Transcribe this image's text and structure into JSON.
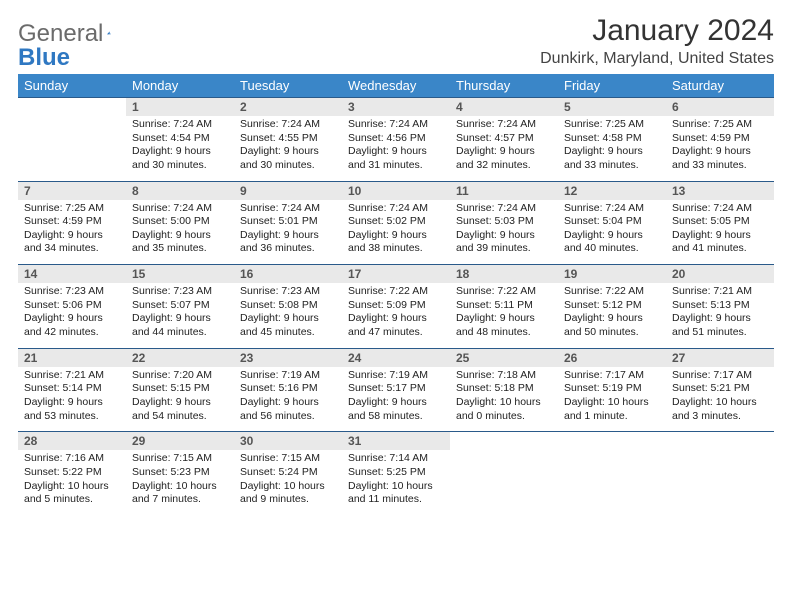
{
  "brand": {
    "word1": "General",
    "word2": "Blue"
  },
  "title": "January 2024",
  "location": "Dunkirk, Maryland, United States",
  "colors": {
    "header_bg": "#3a86c8",
    "header_text": "#ffffff",
    "daynum_bg": "#e9e9e9",
    "row_border": "#2a5a8a",
    "logo_gray": "#6b6b6b",
    "logo_blue": "#2f78c2",
    "page_bg": "#ffffff"
  },
  "typography": {
    "title_fontsize": 30,
    "location_fontsize": 16,
    "weekday_fontsize": 13,
    "daynum_fontsize": 12,
    "body_fontsize": 10.5
  },
  "weekdays": [
    "Sunday",
    "Monday",
    "Tuesday",
    "Wednesday",
    "Thursday",
    "Friday",
    "Saturday"
  ],
  "grid": [
    [
      {
        "num": "",
        "lines": []
      },
      {
        "num": "1",
        "lines": [
          "Sunrise: 7:24 AM",
          "Sunset: 4:54 PM",
          "Daylight: 9 hours and 30 minutes."
        ]
      },
      {
        "num": "2",
        "lines": [
          "Sunrise: 7:24 AM",
          "Sunset: 4:55 PM",
          "Daylight: 9 hours and 30 minutes."
        ]
      },
      {
        "num": "3",
        "lines": [
          "Sunrise: 7:24 AM",
          "Sunset: 4:56 PM",
          "Daylight: 9 hours and 31 minutes."
        ]
      },
      {
        "num": "4",
        "lines": [
          "Sunrise: 7:24 AM",
          "Sunset: 4:57 PM",
          "Daylight: 9 hours and 32 minutes."
        ]
      },
      {
        "num": "5",
        "lines": [
          "Sunrise: 7:25 AM",
          "Sunset: 4:58 PM",
          "Daylight: 9 hours and 33 minutes."
        ]
      },
      {
        "num": "6",
        "lines": [
          "Sunrise: 7:25 AM",
          "Sunset: 4:59 PM",
          "Daylight: 9 hours and 33 minutes."
        ]
      }
    ],
    [
      {
        "num": "7",
        "lines": [
          "Sunrise: 7:25 AM",
          "Sunset: 4:59 PM",
          "Daylight: 9 hours and 34 minutes."
        ]
      },
      {
        "num": "8",
        "lines": [
          "Sunrise: 7:24 AM",
          "Sunset: 5:00 PM",
          "Daylight: 9 hours and 35 minutes."
        ]
      },
      {
        "num": "9",
        "lines": [
          "Sunrise: 7:24 AM",
          "Sunset: 5:01 PM",
          "Daylight: 9 hours and 36 minutes."
        ]
      },
      {
        "num": "10",
        "lines": [
          "Sunrise: 7:24 AM",
          "Sunset: 5:02 PM",
          "Daylight: 9 hours and 38 minutes."
        ]
      },
      {
        "num": "11",
        "lines": [
          "Sunrise: 7:24 AM",
          "Sunset: 5:03 PM",
          "Daylight: 9 hours and 39 minutes."
        ]
      },
      {
        "num": "12",
        "lines": [
          "Sunrise: 7:24 AM",
          "Sunset: 5:04 PM",
          "Daylight: 9 hours and 40 minutes."
        ]
      },
      {
        "num": "13",
        "lines": [
          "Sunrise: 7:24 AM",
          "Sunset: 5:05 PM",
          "Daylight: 9 hours and 41 minutes."
        ]
      }
    ],
    [
      {
        "num": "14",
        "lines": [
          "Sunrise: 7:23 AM",
          "Sunset: 5:06 PM",
          "Daylight: 9 hours and 42 minutes."
        ]
      },
      {
        "num": "15",
        "lines": [
          "Sunrise: 7:23 AM",
          "Sunset: 5:07 PM",
          "Daylight: 9 hours and 44 minutes."
        ]
      },
      {
        "num": "16",
        "lines": [
          "Sunrise: 7:23 AM",
          "Sunset: 5:08 PM",
          "Daylight: 9 hours and 45 minutes."
        ]
      },
      {
        "num": "17",
        "lines": [
          "Sunrise: 7:22 AM",
          "Sunset: 5:09 PM",
          "Daylight: 9 hours and 47 minutes."
        ]
      },
      {
        "num": "18",
        "lines": [
          "Sunrise: 7:22 AM",
          "Sunset: 5:11 PM",
          "Daylight: 9 hours and 48 minutes."
        ]
      },
      {
        "num": "19",
        "lines": [
          "Sunrise: 7:22 AM",
          "Sunset: 5:12 PM",
          "Daylight: 9 hours and 50 minutes."
        ]
      },
      {
        "num": "20",
        "lines": [
          "Sunrise: 7:21 AM",
          "Sunset: 5:13 PM",
          "Daylight: 9 hours and 51 minutes."
        ]
      }
    ],
    [
      {
        "num": "21",
        "lines": [
          "Sunrise: 7:21 AM",
          "Sunset: 5:14 PM",
          "Daylight: 9 hours and 53 minutes."
        ]
      },
      {
        "num": "22",
        "lines": [
          "Sunrise: 7:20 AM",
          "Sunset: 5:15 PM",
          "Daylight: 9 hours and 54 minutes."
        ]
      },
      {
        "num": "23",
        "lines": [
          "Sunrise: 7:19 AM",
          "Sunset: 5:16 PM",
          "Daylight: 9 hours and 56 minutes."
        ]
      },
      {
        "num": "24",
        "lines": [
          "Sunrise: 7:19 AM",
          "Sunset: 5:17 PM",
          "Daylight: 9 hours and 58 minutes."
        ]
      },
      {
        "num": "25",
        "lines": [
          "Sunrise: 7:18 AM",
          "Sunset: 5:18 PM",
          "Daylight: 10 hours and 0 minutes."
        ]
      },
      {
        "num": "26",
        "lines": [
          "Sunrise: 7:17 AM",
          "Sunset: 5:19 PM",
          "Daylight: 10 hours and 1 minute."
        ]
      },
      {
        "num": "27",
        "lines": [
          "Sunrise: 7:17 AM",
          "Sunset: 5:21 PM",
          "Daylight: 10 hours and 3 minutes."
        ]
      }
    ],
    [
      {
        "num": "28",
        "lines": [
          "Sunrise: 7:16 AM",
          "Sunset: 5:22 PM",
          "Daylight: 10 hours and 5 minutes."
        ]
      },
      {
        "num": "29",
        "lines": [
          "Sunrise: 7:15 AM",
          "Sunset: 5:23 PM",
          "Daylight: 10 hours and 7 minutes."
        ]
      },
      {
        "num": "30",
        "lines": [
          "Sunrise: 7:15 AM",
          "Sunset: 5:24 PM",
          "Daylight: 10 hours and 9 minutes."
        ]
      },
      {
        "num": "31",
        "lines": [
          "Sunrise: 7:14 AM",
          "Sunset: 5:25 PM",
          "Daylight: 10 hours and 11 minutes."
        ]
      },
      {
        "num": "",
        "lines": []
      },
      {
        "num": "",
        "lines": []
      },
      {
        "num": "",
        "lines": []
      }
    ]
  ]
}
